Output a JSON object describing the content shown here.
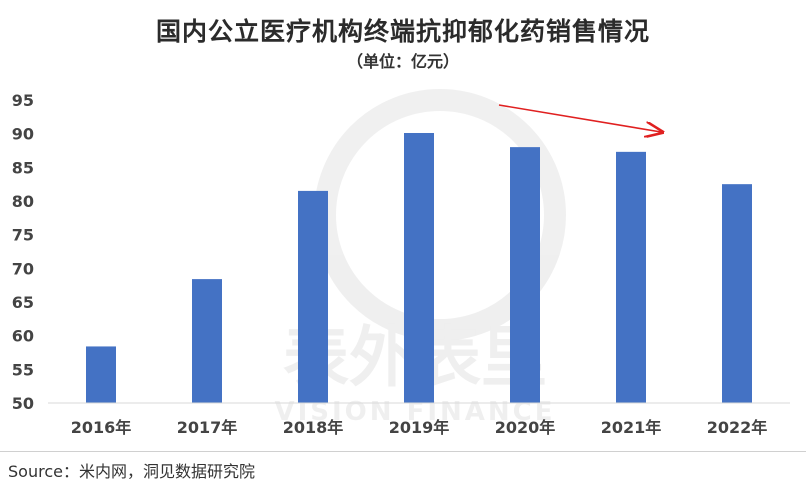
{
  "chart_data": {
    "type": "bar",
    "title": "国内公立医疗机构终端抗抑郁化药销售情况",
    "subtitle": "（单位：亿元）",
    "categories": [
      "2016年",
      "2017年",
      "2018年",
      "2019年",
      "2020年",
      "2021年",
      "2022年"
    ],
    "values": [
      58.4,
      68.4,
      81.5,
      90.1,
      88.0,
      87.3,
      82.5
    ],
    "ylim": [
      50,
      95
    ],
    "yticks": [
      50,
      55,
      60,
      65,
      70,
      75,
      80,
      85,
      90,
      95
    ],
    "grid": false,
    "bar_color": "#4472c4",
    "annotation": {
      "type": "arrow",
      "color": "#e02020",
      "from_category": "2019年",
      "to_category": "2021年"
    }
  },
  "source": "Source：米内网，洞见数据研究院",
  "watermark": {
    "cn": "表外表里",
    "en": "VISION FINANCE"
  }
}
